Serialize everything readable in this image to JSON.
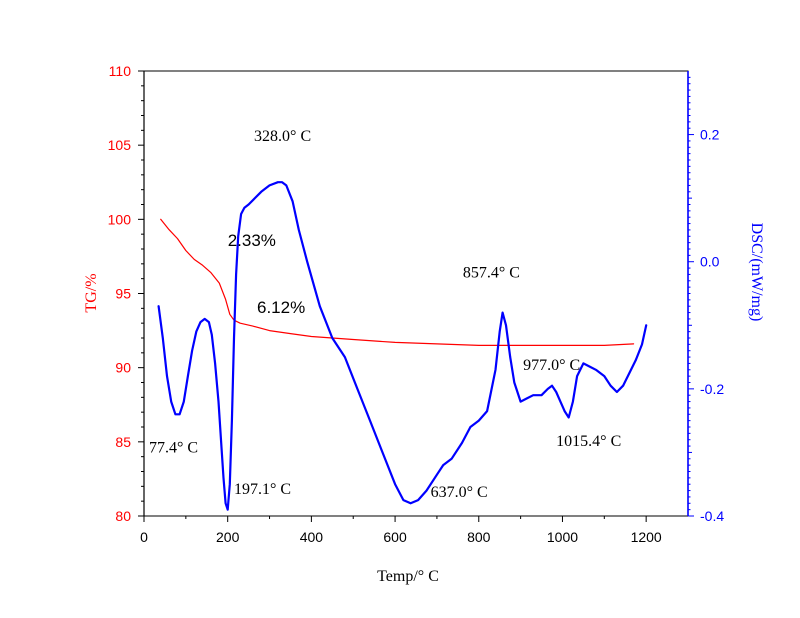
{
  "colors": {
    "tg": "#ff0000",
    "dsc": "#0000ff",
    "axis_left": "#ff0000",
    "axis_right": "#0000ff",
    "frame": "#000000"
  },
  "chart_data": {
    "type": "line",
    "title": "",
    "xlabel": "Temp/° C",
    "xlim": [
      0,
      1300
    ],
    "xticks": [
      0,
      200,
      400,
      600,
      800,
      1000,
      1200
    ],
    "xtick_labels": [
      "0",
      "200",
      "400",
      "600",
      "800",
      "1000",
      "1200"
    ],
    "y_left": {
      "label": "TG/%",
      "ylim": [
        80,
        110
      ],
      "ticks": [
        80,
        85,
        90,
        95,
        100,
        105,
        110
      ],
      "tick_labels": [
        "80",
        "85",
        "90",
        "95",
        "100",
        "105",
        "110"
      ]
    },
    "y_right": {
      "label": "DSC/(mW/mg)",
      "ylim": [
        -0.4,
        0.3
      ],
      "ticks": [
        -0.4,
        -0.2,
        0.0,
        0.2
      ],
      "tick_labels": [
        "-0.4",
        "-0.2",
        "0.0",
        "0.2"
      ]
    },
    "grid": false,
    "legend": "none",
    "series": [
      {
        "name": "",
        "axis": "left",
        "x": [
          40,
          60,
          80,
          100,
          120,
          140,
          160,
          180,
          195,
          205,
          215,
          230,
          260,
          300,
          350,
          400,
          450,
          500,
          600,
          700,
          800,
          900,
          1000,
          1100,
          1170
        ],
        "y": [
          100.0,
          99.3,
          98.7,
          97.9,
          97.3,
          96.9,
          96.4,
          95.7,
          94.6,
          93.6,
          93.2,
          93.0,
          92.8,
          92.5,
          92.3,
          92.1,
          92.0,
          91.9,
          91.7,
          91.6,
          91.5,
          91.5,
          91.5,
          91.5,
          91.6
        ]
      },
      {
        "name": "",
        "axis": "right",
        "x": [
          35,
          45,
          55,
          65,
          75,
          85,
          95,
          105,
          115,
          125,
          135,
          145,
          155,
          162,
          170,
          178,
          185,
          190,
          195,
          200,
          205,
          210,
          215,
          220,
          225,
          232,
          240,
          250,
          265,
          280,
          300,
          320,
          330,
          340,
          355,
          370,
          390,
          420,
          450,
          480,
          510,
          540,
          570,
          600,
          620,
          637,
          655,
          675,
          700,
          715,
          735,
          760,
          780,
          800,
          820,
          840,
          850,
          857,
          865,
          875,
          885,
          900,
          915,
          930,
          950,
          965,
          975,
          985,
          995,
          1005,
          1015,
          1025,
          1035,
          1050,
          1065,
          1080,
          1100,
          1115,
          1130,
          1145,
          1160,
          1175,
          1190,
          1200
        ],
        "y": [
          -0.07,
          -0.12,
          -0.18,
          -0.22,
          -0.24,
          -0.24,
          -0.22,
          -0.18,
          -0.14,
          -0.11,
          -0.095,
          -0.09,
          -0.095,
          -0.115,
          -0.16,
          -0.22,
          -0.29,
          -0.34,
          -0.38,
          -0.39,
          -0.35,
          -0.25,
          -0.12,
          -0.02,
          0.04,
          0.075,
          0.085,
          0.09,
          0.1,
          0.11,
          0.12,
          0.125,
          0.125,
          0.12,
          0.095,
          0.05,
          0.0,
          -0.07,
          -0.12,
          -0.15,
          -0.2,
          -0.25,
          -0.3,
          -0.35,
          -0.375,
          -0.38,
          -0.375,
          -0.36,
          -0.335,
          -0.32,
          -0.31,
          -0.285,
          -0.26,
          -0.25,
          -0.235,
          -0.17,
          -0.11,
          -0.08,
          -0.1,
          -0.15,
          -0.19,
          -0.22,
          -0.215,
          -0.21,
          -0.21,
          -0.2,
          -0.195,
          -0.205,
          -0.22,
          -0.235,
          -0.245,
          -0.22,
          -0.18,
          -0.16,
          -0.165,
          -0.17,
          -0.18,
          -0.195,
          -0.205,
          -0.195,
          -0.175,
          -0.155,
          -0.13,
          -0.1
        ]
      }
    ],
    "annotations": [
      {
        "text": "2.33%",
        "x": 200,
        "y_axis": "left",
        "y": 98.2,
        "font": "sans"
      },
      {
        "text": "6.12%",
        "x": 270,
        "y_axis": "left",
        "y": 93.7,
        "font": "sans"
      },
      {
        "text": "328.0° C",
        "x": 263,
        "y_axis": "right",
        "y": 0.19,
        "font": "serif"
      },
      {
        "text": "857.4° C",
        "x": 762,
        "y_axis": "right",
        "y": -0.025,
        "font": "serif"
      },
      {
        "text": "977.0° C",
        "x": 906,
        "y_axis": "right",
        "y": -0.17,
        "font": "serif"
      },
      {
        "text": "1015.4° C",
        "x": 985,
        "y_axis": "right",
        "y": -0.29,
        "font": "serif"
      },
      {
        "text": "77.4° C",
        "x": 12,
        "y_axis": "right",
        "y": -0.3,
        "font": "serif"
      },
      {
        "text": "197.1° C",
        "x": 215,
        "y_axis": "right",
        "y": -0.365,
        "font": "serif"
      },
      {
        "text": "637.0° C",
        "x": 685,
        "y_axis": "right",
        "y": -0.37,
        "font": "serif"
      }
    ]
  }
}
